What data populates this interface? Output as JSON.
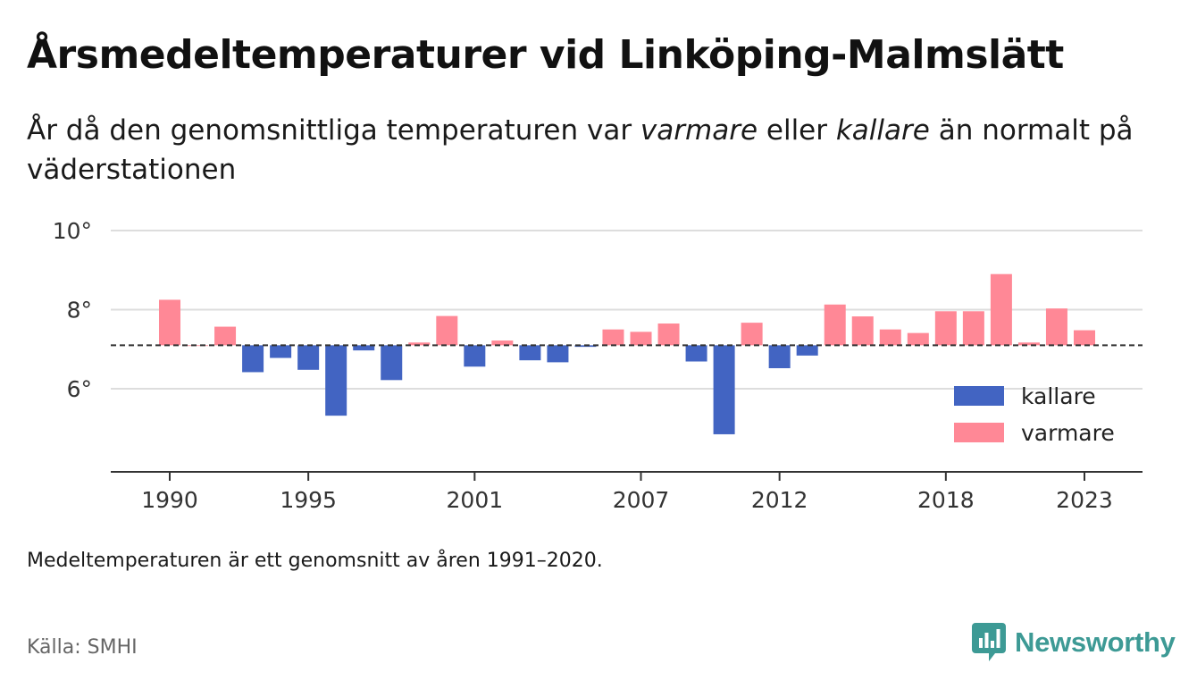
{
  "header": {
    "title": "Årsmedeltemperaturer vid Linköping-Malmslätt",
    "subtitle_part1": "År då den genomsnittliga temperaturen var ",
    "subtitle_em1": "varmare",
    "subtitle_part2": " eller ",
    "subtitle_em2": "kallare",
    "subtitle_part3": " än normalt på väderstationen"
  },
  "chart_data": {
    "type": "bar",
    "title": "Årsmedeltemperaturer vid Linköping-Malmslätt",
    "xlabel": "",
    "ylabel": "",
    "ylim": [
      3.9,
      10.0
    ],
    "yticks": [
      6,
      8,
      10
    ],
    "ytick_suffix": "°",
    "xticks": [
      1990,
      1995,
      2001,
      2007,
      2012,
      2018,
      2023
    ],
    "baseline": 7.1,
    "baseline_style": "dashed",
    "grid": "horizontal",
    "legend_position": "right",
    "colors": {
      "kallare": "#4264c2",
      "varmare": "#ff8896",
      "grid": "#dddddd",
      "axis": "#333333",
      "baseline": "#333333"
    },
    "legend": [
      {
        "key": "kallare",
        "label": "kallare"
      },
      {
        "key": "varmare",
        "label": "varmare"
      }
    ],
    "years": [
      1990,
      1991,
      1992,
      1993,
      1994,
      1995,
      1996,
      1997,
      1998,
      1999,
      2000,
      2001,
      2002,
      2003,
      2004,
      2005,
      2006,
      2007,
      2008,
      2009,
      2010,
      2011,
      2012,
      2013,
      2014,
      2015,
      2016,
      2017,
      2018,
      2019,
      2020,
      2021,
      2022,
      2023
    ],
    "values": [
      8.25,
      7.1,
      7.57,
      6.42,
      6.78,
      6.48,
      5.32,
      6.97,
      6.22,
      7.17,
      7.84,
      6.56,
      7.22,
      6.72,
      6.67,
      7.06,
      7.5,
      7.44,
      7.65,
      6.69,
      4.85,
      7.67,
      6.52,
      6.84,
      8.13,
      7.83,
      7.5,
      7.41,
      7.96,
      7.96,
      8.9,
      7.17,
      8.03,
      7.48
    ]
  },
  "footnote": "Medeltemperaturen är ett genomsnitt av åren 1991–2020.",
  "source": "Källa: SMHI",
  "brand": {
    "name": "Newsworthy",
    "icon": "newsworthy-logo-icon",
    "color": "#3d9a95"
  }
}
